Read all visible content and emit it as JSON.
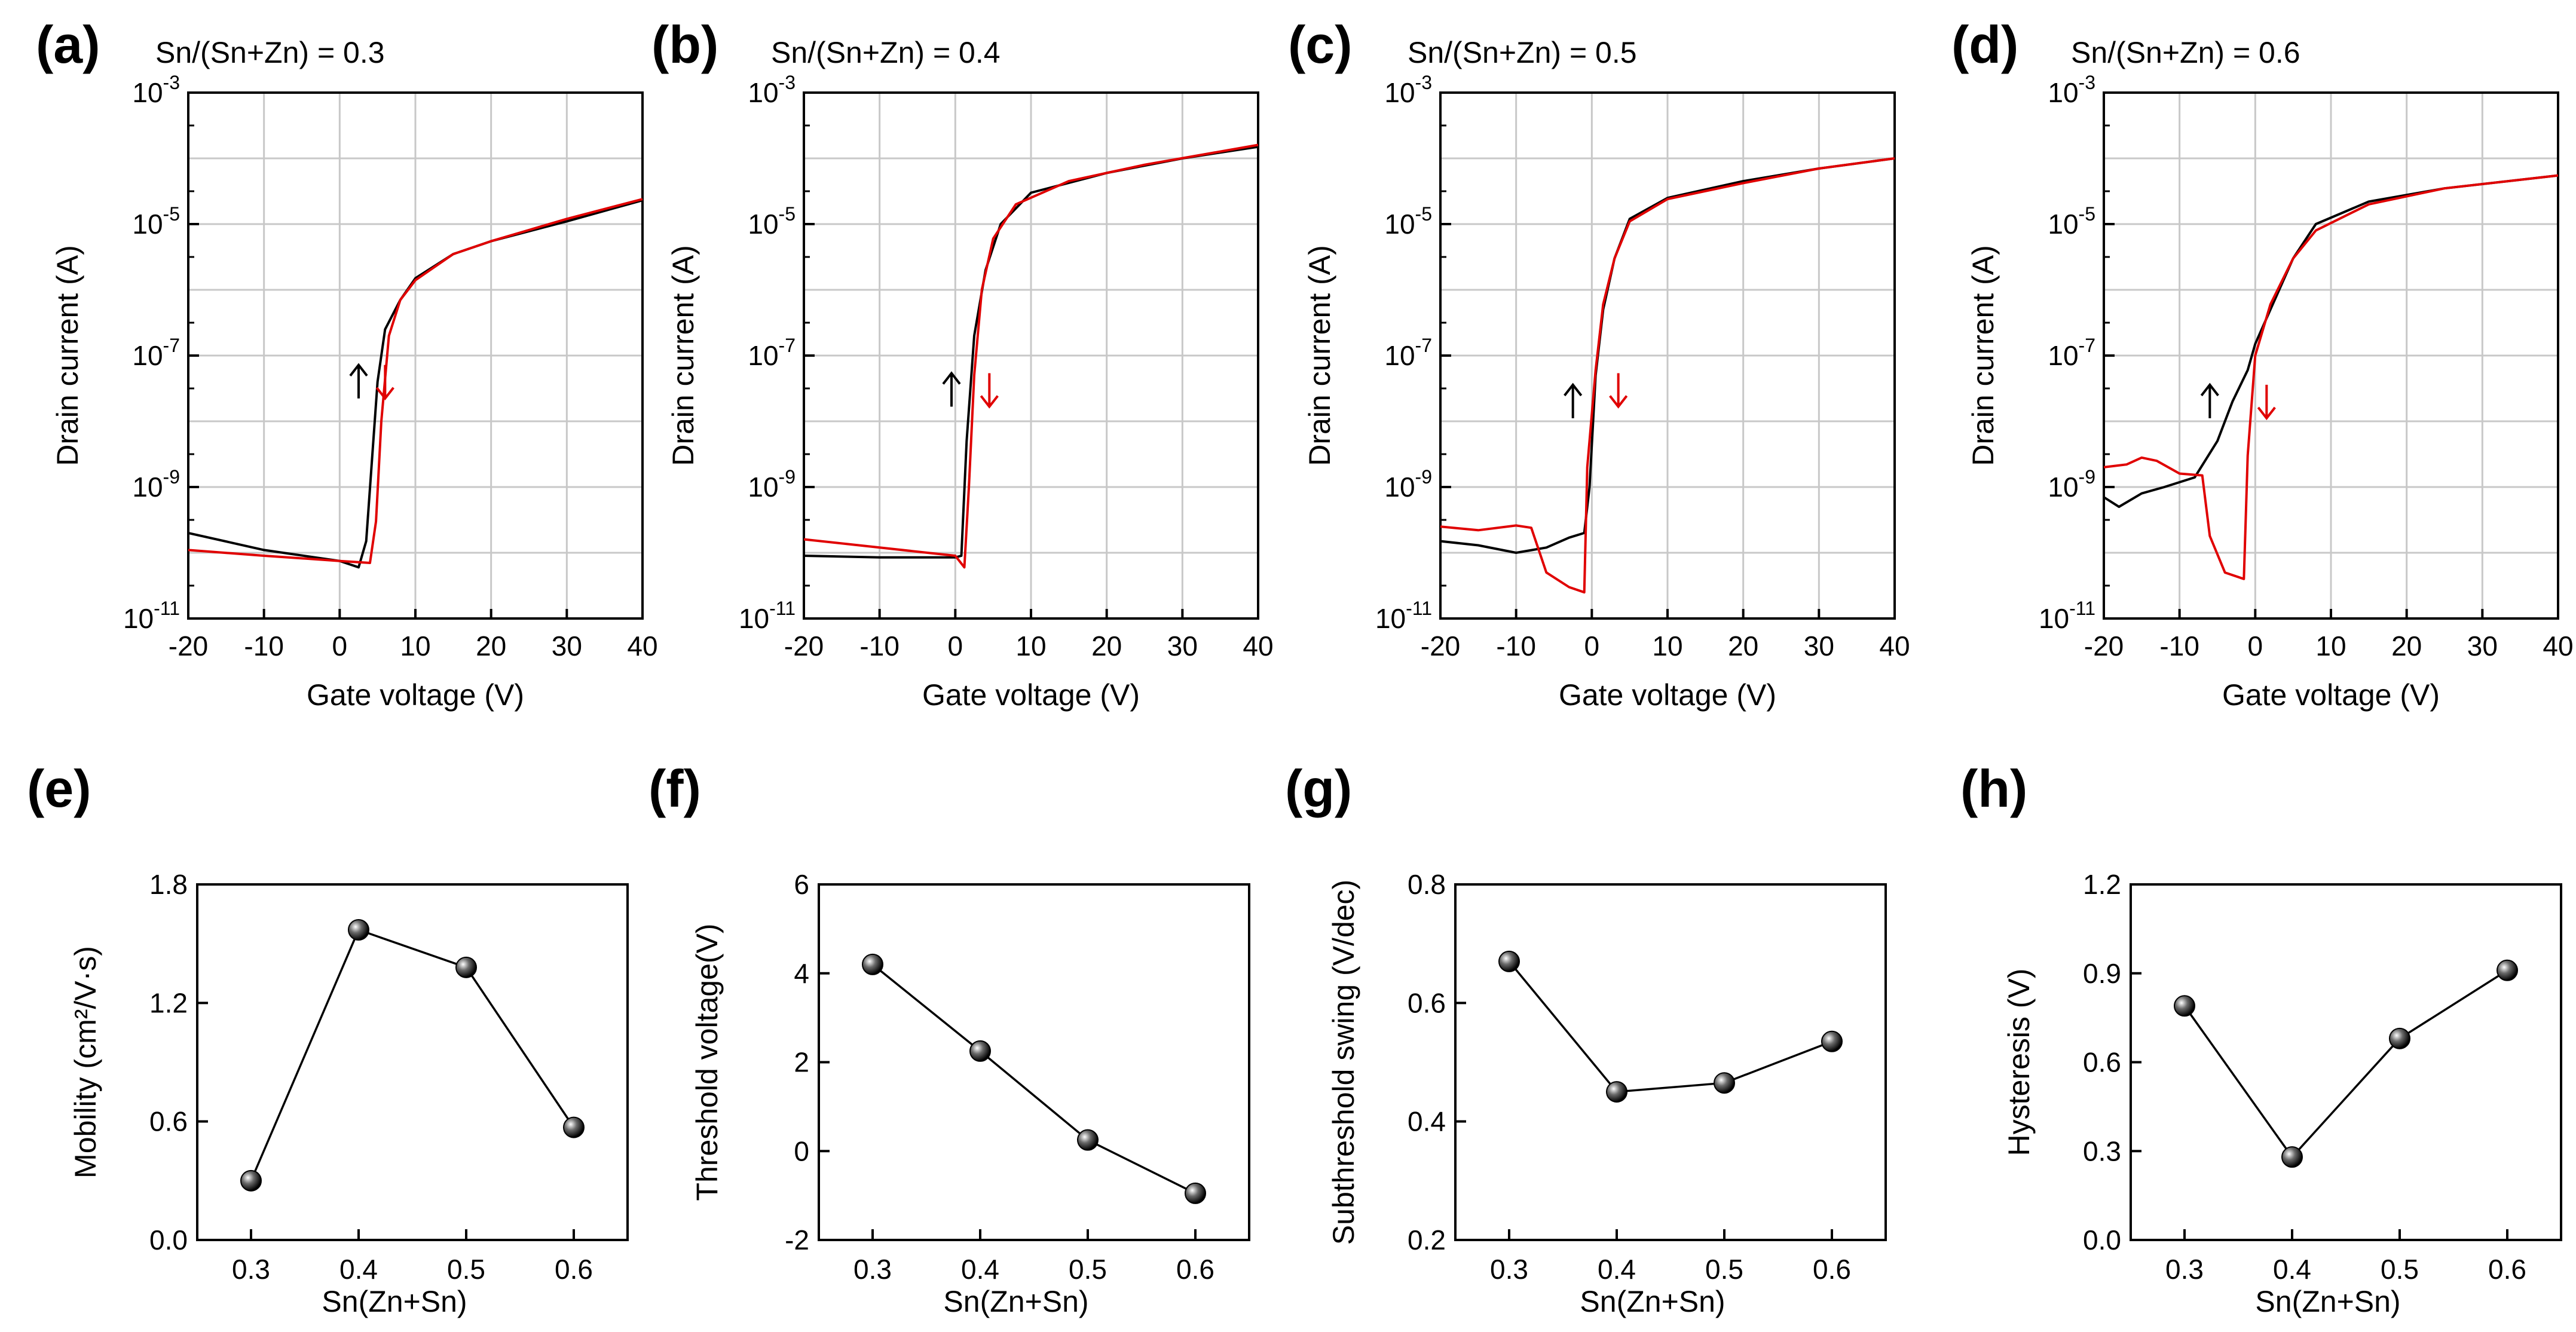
{
  "chart_data": [
    {
      "panel": "(a)",
      "type": "line",
      "yscale": "log",
      "title": "Sn/(Sn+Zn) = 0.3",
      "xlabel": "Gate voltage (V)",
      "ylabel": "Drain current (A)",
      "xlim": [
        -20,
        40
      ],
      "xticks": [
        -20,
        -10,
        0,
        10,
        20,
        30,
        40
      ],
      "xtick_labels": [
        "-20",
        "-10",
        "0",
        "10",
        "20",
        "30",
        "40"
      ],
      "ylim": [
        1e-11,
        0.001
      ],
      "yticks": [
        -11,
        -9,
        -7,
        -5,
        -3
      ],
      "series": [
        {
          "name": "forward",
          "color": "#000000",
          "points": [
            [
              -20,
              2e-10
            ],
            [
              -10,
              1.1e-10
            ],
            [
              0,
              7.5e-11
            ],
            [
              2.5,
              6e-11
            ],
            [
              3.5,
              1.5e-10
            ],
            [
              4.2,
              2e-09
            ],
            [
              5,
              4e-08
            ],
            [
              6,
              2.5e-07
            ],
            [
              8,
              7e-07
            ],
            [
              10,
              1.5e-06
            ],
            [
              15,
              3.5e-06
            ],
            [
              20,
              5.5e-06
            ],
            [
              30,
              1.1e-05
            ],
            [
              40,
              2.3e-05
            ]
          ]
        },
        {
          "name": "reverse",
          "color": "#e00000",
          "points": [
            [
              -20,
              1.1e-10
            ],
            [
              -10,
              9e-11
            ],
            [
              0,
              7.5e-11
            ],
            [
              4,
              7e-11
            ],
            [
              4.8,
              3e-10
            ],
            [
              5.5,
              1e-08
            ],
            [
              6.5,
              2e-07
            ],
            [
              8,
              7e-07
            ],
            [
              10,
              1.4e-06
            ],
            [
              15,
              3.5e-06
            ],
            [
              20,
              5.5e-06
            ],
            [
              30,
              1.2e-05
            ],
            [
              40,
              2.4e-05
            ]
          ]
        }
      ],
      "annotations": [
        {
          "dir": "up",
          "x": 2.5,
          "y": 4e-08,
          "color": "#000000"
        },
        {
          "dir": "down",
          "x": 6.0,
          "y": 4e-08,
          "color": "#e00000"
        }
      ]
    },
    {
      "panel": "(b)",
      "type": "line",
      "yscale": "log",
      "title": "Sn/(Sn+Zn) = 0.4",
      "xlabel": "Gate voltage (V)",
      "ylabel": "Drain current (A)",
      "xlim": [
        -20,
        40
      ],
      "xticks": [
        -20,
        -10,
        0,
        10,
        20,
        30,
        40
      ],
      "xtick_labels": [
        "-20",
        "-10",
        "0",
        "10",
        "20",
        "30",
        "40"
      ],
      "ylim": [
        1e-11,
        0.001
      ],
      "yticks": [
        -11,
        -9,
        -7,
        -5,
        -3
      ],
      "series": [
        {
          "name": "forward",
          "color": "#000000",
          "points": [
            [
              -20,
              9e-11
            ],
            [
              -10,
              8.5e-11
            ],
            [
              0,
              8.5e-11
            ],
            [
              0.8,
              9e-11
            ],
            [
              1.5,
              5e-09
            ],
            [
              2.5,
              2e-07
            ],
            [
              4,
              2e-06
            ],
            [
              6,
              1e-05
            ],
            [
              10,
              3e-05
            ],
            [
              20,
              6e-05
            ],
            [
              30,
              0.0001
            ],
            [
              40,
              0.00015
            ]
          ]
        },
        {
          "name": "reverse",
          "color": "#e00000",
          "points": [
            [
              -20,
              1.6e-10
            ],
            [
              -10,
              1.2e-10
            ],
            [
              0,
              9e-11
            ],
            [
              1.2,
              6e-11
            ],
            [
              1.8,
              1e-09
            ],
            [
              2.5,
              5e-08
            ],
            [
              3.5,
              1e-06
            ],
            [
              5,
              6e-06
            ],
            [
              8,
              2e-05
            ],
            [
              15,
              4.5e-05
            ],
            [
              25,
              8e-05
            ],
            [
              40,
              0.00016
            ]
          ]
        }
      ],
      "annotations": [
        {
          "dir": "up",
          "x": -0.5,
          "y": 3e-08,
          "color": "#000000"
        },
        {
          "dir": "down",
          "x": 4.5,
          "y": 3e-08,
          "color": "#e00000"
        }
      ]
    },
    {
      "panel": "(c)",
      "type": "line",
      "yscale": "log",
      "title": "Sn/(Sn+Zn) = 0.5",
      "xlabel": "Gate voltage (V)",
      "ylabel": "Drain current (A)",
      "xlim": [
        -20,
        40
      ],
      "xticks": [
        -20,
        -10,
        0,
        10,
        20,
        30,
        40
      ],
      "xtick_labels": [
        "-20",
        "-10",
        "0",
        "10",
        "20",
        "30",
        "40"
      ],
      "ylim": [
        1e-11,
        0.001
      ],
      "yticks": [
        -11,
        -9,
        -7,
        -5,
        -3
      ],
      "series": [
        {
          "name": "forward",
          "color": "#000000",
          "points": [
            [
              -20,
              1.5e-10
            ],
            [
              -15,
              1.3e-10
            ],
            [
              -10,
              1e-10
            ],
            [
              -6,
              1.2e-10
            ],
            [
              -3,
              1.7e-10
            ],
            [
              -1,
              2e-10
            ],
            [
              -0.3,
              1e-09
            ],
            [
              0.5,
              5e-08
            ],
            [
              1.5,
              5e-07
            ],
            [
              3,
              3e-06
            ],
            [
              5,
              1.2e-05
            ],
            [
              10,
              2.5e-05
            ],
            [
              20,
              4.5e-05
            ],
            [
              30,
              7e-05
            ],
            [
              40,
              0.0001
            ]
          ]
        },
        {
          "name": "reverse",
          "color": "#e00000",
          "points": [
            [
              -20,
              2.5e-10
            ],
            [
              -15,
              2.2e-10
            ],
            [
              -10,
              2.6e-10
            ],
            [
              -8,
              2.4e-10
            ],
            [
              -6,
              5e-11
            ],
            [
              -3,
              3e-11
            ],
            [
              -1,
              2.5e-11
            ],
            [
              -0.6,
              2e-09
            ],
            [
              0.5,
              6e-08
            ],
            [
              1.5,
              6e-07
            ],
            [
              3,
              3e-06
            ],
            [
              5,
              1.1e-05
            ],
            [
              10,
              2.4e-05
            ],
            [
              20,
              4.2e-05
            ],
            [
              30,
              7e-05
            ],
            [
              40,
              0.0001
            ]
          ]
        }
      ],
      "annotations": [
        {
          "dir": "up",
          "x": -2.5,
          "y": 2e-08,
          "color": "#000000"
        },
        {
          "dir": "down",
          "x": 3.5,
          "y": 3e-08,
          "color": "#e00000"
        }
      ]
    },
    {
      "panel": "(d)",
      "type": "line",
      "yscale": "log",
      "title": "Sn/(Sn+Zn) = 0.6",
      "xlabel": "Gate voltage (V)",
      "ylabel": "Drain current (A)",
      "xlim": [
        -20,
        40
      ],
      "xticks": [
        -20,
        -10,
        0,
        10,
        20,
        30,
        40
      ],
      "xtick_labels": [
        "-20",
        "-10",
        "0",
        "10",
        "20",
        "30",
        "40"
      ],
      "ylim": [
        1e-11,
        0.001
      ],
      "yticks": [
        -11,
        -9,
        -7,
        -5,
        -3
      ],
      "series": [
        {
          "name": "forward",
          "color": "#000000",
          "points": [
            [
              -20,
              7e-10
            ],
            [
              -18,
              5e-10
            ],
            [
              -15,
              8e-10
            ],
            [
              -12,
              1e-09
            ],
            [
              -8,
              1.4e-09
            ],
            [
              -5,
              5e-09
            ],
            [
              -3,
              2e-08
            ],
            [
              -1,
              6e-08
            ],
            [
              0,
              1.5e-07
            ],
            [
              2,
              5e-07
            ],
            [
              5,
              3e-06
            ],
            [
              8,
              1e-05
            ],
            [
              15,
              2.2e-05
            ],
            [
              25,
              3.5e-05
            ],
            [
              40,
              5.5e-05
            ]
          ]
        },
        {
          "name": "reverse",
          "color": "#e00000",
          "points": [
            [
              -20,
              2e-09
            ],
            [
              -17,
              2.2e-09
            ],
            [
              -15,
              2.8e-09
            ],
            [
              -13,
              2.5e-09
            ],
            [
              -10,
              1.6e-09
            ],
            [
              -7,
              1.5e-09
            ],
            [
              -6,
              1.8e-10
            ],
            [
              -4,
              5e-11
            ],
            [
              -1.5,
              4e-11
            ],
            [
              -1,
              3e-09
            ],
            [
              0,
              1e-07
            ],
            [
              2,
              6e-07
            ],
            [
              5,
              3e-06
            ],
            [
              8,
              8e-06
            ],
            [
              15,
              2e-05
            ],
            [
              25,
              3.5e-05
            ],
            [
              40,
              5.5e-05
            ]
          ]
        }
      ],
      "annotations": [
        {
          "dir": "up",
          "x": -6.0,
          "y": 2e-08,
          "color": "#000000"
        },
        {
          "dir": "down",
          "x": 1.5,
          "y": 2e-08,
          "color": "#e00000"
        }
      ]
    },
    {
      "panel": "(e)",
      "type": "scatter-line",
      "title": "",
      "xlabel": "Sn(Zn+Sn)",
      "ylabel": "Mobility (cm²/V·s)",
      "xlim": [
        0.25,
        0.65
      ],
      "xticks": [
        0.3,
        0.4,
        0.5,
        0.6
      ],
      "xtick_labels": [
        "0.3",
        "0.4",
        "0.5",
        "0.6"
      ],
      "ylim": [
        0.0,
        1.8
      ],
      "yticks": [
        0.0,
        0.6,
        1.2,
        1.8
      ],
      "ytick_labels": [
        "0.0",
        "0.6",
        "1.2",
        "1.8"
      ],
      "x": [
        0.3,
        0.4,
        0.5,
        0.6
      ],
      "values": [
        0.3,
        1.57,
        1.38,
        0.57
      ]
    },
    {
      "panel": "(f)",
      "type": "scatter-line",
      "title": "",
      "xlabel": "Sn(Zn+Sn)",
      "ylabel": "Threshold voltage(V)",
      "xlim": [
        0.25,
        0.65
      ],
      "xticks": [
        0.3,
        0.4,
        0.5,
        0.6
      ],
      "xtick_labels": [
        "0.3",
        "0.4",
        "0.5",
        "0.6"
      ],
      "ylim": [
        -2,
        6
      ],
      "yticks": [
        -2,
        0,
        2,
        4,
        6
      ],
      "ytick_labels": [
        "-2",
        "0",
        "2",
        "4",
        "6"
      ],
      "x": [
        0.3,
        0.4,
        0.5,
        0.6
      ],
      "values": [
        4.2,
        2.25,
        0.25,
        -0.95
      ]
    },
    {
      "panel": "(g)",
      "type": "scatter-line",
      "title": "",
      "xlabel": "Sn(Zn+Sn)",
      "ylabel": "Subthreshold swing (V/dec)",
      "xlim": [
        0.25,
        0.65
      ],
      "xticks": [
        0.3,
        0.4,
        0.5,
        0.6
      ],
      "xtick_labels": [
        "0.3",
        "0.4",
        "0.5",
        "0.6"
      ],
      "ylim": [
        0.2,
        0.8
      ],
      "yticks": [
        0.2,
        0.4,
        0.6,
        0.8
      ],
      "ytick_labels": [
        "0.2",
        "0.4",
        "0.6",
        "0.8"
      ],
      "x": [
        0.3,
        0.4,
        0.5,
        0.6
      ],
      "values": [
        0.67,
        0.45,
        0.465,
        0.535
      ]
    },
    {
      "panel": "(h)",
      "type": "scatter-line",
      "title": "",
      "xlabel": "Sn(Zn+Sn)",
      "ylabel": "Hysteresis (V)",
      "xlim": [
        0.25,
        0.65
      ],
      "xticks": [
        0.3,
        0.4,
        0.5,
        0.6
      ],
      "xtick_labels": [
        "0.3",
        "0.4",
        "0.5",
        "0.6"
      ],
      "ylim": [
        0.0,
        1.2
      ],
      "yticks": [
        0.0,
        0.3,
        0.6,
        0.9,
        1.2
      ],
      "ytick_labels": [
        "0.0",
        "0.3",
        "0.6",
        "0.9",
        "1.2"
      ],
      "x": [
        0.3,
        0.4,
        0.5,
        0.6
      ],
      "values": [
        0.79,
        0.28,
        0.68,
        0.91
      ]
    }
  ]
}
